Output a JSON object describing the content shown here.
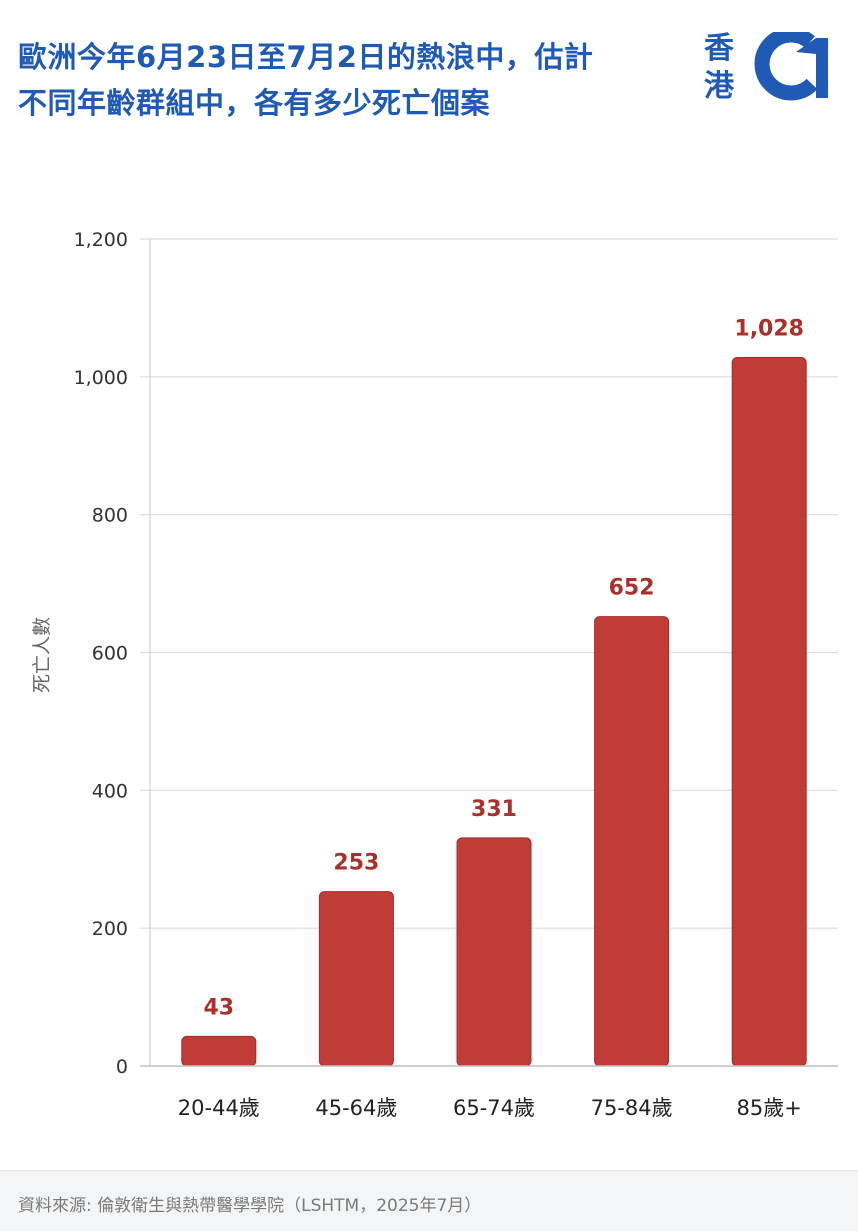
{
  "header": {
    "title_line1": "歐洲今年6月23日至7月2日的熱浪中，估計",
    "title_line2": "不同年齡群組中，各有多少死亡個案",
    "logo_text_top": "香",
    "logo_text_bottom": "港",
    "logo_icon": "hk01-logo",
    "title_color": "#1f5ab4"
  },
  "chart_data": {
    "type": "bar",
    "title": "",
    "xlabel": "",
    "ylabel": "死亡人數",
    "categories": [
      "20-44歲",
      "45-64歲",
      "65-74歲",
      "75-84歲",
      "85歲+"
    ],
    "values": [
      43,
      253,
      331,
      652,
      1028
    ],
    "value_labels": [
      "43",
      "253",
      "331",
      "652",
      "1,028"
    ],
    "ylim": [
      0,
      1200
    ],
    "yticks": [
      0,
      200,
      400,
      600,
      800,
      1000,
      1200
    ],
    "ytick_labels": [
      "0",
      "200",
      "400",
      "600",
      "800",
      "1,000",
      "1,200"
    ],
    "grid": true,
    "bar_color": "#c23b36",
    "label_color": "#a9302b"
  },
  "footer": {
    "source": "資料來源: 倫敦衛生與熱帶醫學學院（LSHTM，2025年7月）"
  }
}
